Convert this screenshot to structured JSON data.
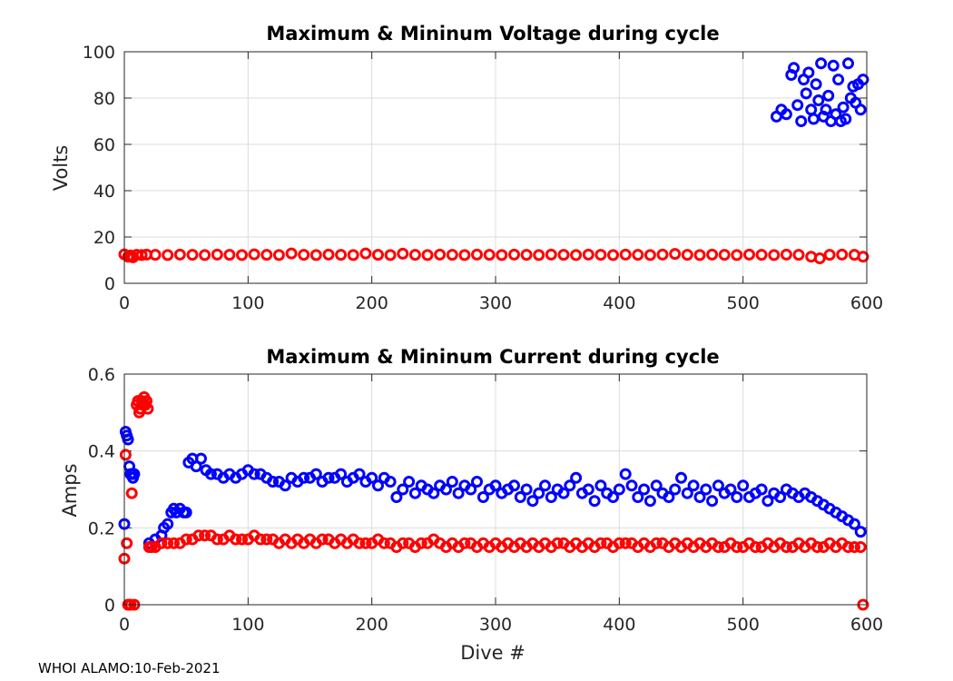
{
  "footer": "WHOI ALAMO:10-Feb-2021",
  "colors": {
    "max_series": "#0000ff",
    "min_series": "#ff0000",
    "axis": "#262626",
    "grid": "#dcdcdc"
  },
  "chart_data": [
    {
      "type": "scatter",
      "title": "Maximum & Mininum Voltage during cycle",
      "xlabel": "",
      "ylabel": "Volts",
      "xlim": [
        0,
        600
      ],
      "ylim": [
        0,
        100
      ],
      "xticks": [
        0,
        100,
        200,
        300,
        400,
        500,
        600
      ],
      "yticks": [
        0,
        20,
        40,
        60,
        80,
        100
      ],
      "grid": true,
      "marker": "open circle",
      "series": [
        {
          "name": "Maximum",
          "color": "#0000ff",
          "x": [
            527,
            531,
            535,
            539,
            541,
            544,
            547,
            549,
            551,
            553,
            555,
            557,
            559,
            561,
            563,
            565,
            567,
            569,
            571,
            573,
            575,
            577,
            579,
            581,
            583,
            585,
            587,
            589,
            591,
            593,
            595,
            597
          ],
          "y": [
            72,
            75,
            73,
            90,
            93,
            77,
            70,
            88,
            82,
            91,
            75,
            71,
            86,
            79,
            95,
            72,
            75,
            81,
            70,
            94,
            73,
            88,
            70,
            76,
            71,
            95,
            80,
            85,
            78,
            86,
            75,
            88
          ]
        },
        {
          "name": "Minimum",
          "color": "#ff0000",
          "x": [
            0,
            3,
            5,
            7,
            10,
            14,
            18,
            25,
            35,
            45,
            55,
            65,
            75,
            85,
            95,
            105,
            115,
            125,
            135,
            145,
            155,
            165,
            175,
            185,
            195,
            205,
            215,
            225,
            235,
            245,
            255,
            265,
            275,
            285,
            295,
            305,
            315,
            325,
            335,
            345,
            355,
            365,
            375,
            385,
            395,
            405,
            415,
            425,
            435,
            445,
            455,
            465,
            475,
            485,
            495,
            505,
            515,
            525,
            535,
            545,
            555,
            562,
            570,
            580,
            590,
            597
          ],
          "y": [
            12.5,
            11.5,
            12,
            11.2,
            12.3,
            12.2,
            12.4,
            12.3,
            12.2,
            12.4,
            12.3,
            12.2,
            12.4,
            12.3,
            12.2,
            12.5,
            12.3,
            12.2,
            12.9,
            12.3,
            12.2,
            12.4,
            12.3,
            12.2,
            12.9,
            12.3,
            12.2,
            12.8,
            12.3,
            12.2,
            12.4,
            12.3,
            12.2,
            12.4,
            12.3,
            12.2,
            12.4,
            12.3,
            12.2,
            12.4,
            12.3,
            12.2,
            12.4,
            12.3,
            12.2,
            12.4,
            12.3,
            12.2,
            12.4,
            12.7,
            12.3,
            12.2,
            12.4,
            12.3,
            12.2,
            12.4,
            12.3,
            12.2,
            12.4,
            12.3,
            11.5,
            10.8,
            12.3,
            12.4,
            12.3,
            11.5
          ]
        }
      ]
    },
    {
      "type": "scatter",
      "title": "Maximum & Mininum Current during cycle",
      "xlabel": "Dive #",
      "ylabel": "Amps",
      "xlim": [
        0,
        600
      ],
      "ylim": [
        0,
        0.6
      ],
      "xticks": [
        0,
        100,
        200,
        300,
        400,
        500,
        600
      ],
      "yticks": [
        0,
        0.2,
        0.4,
        0.6
      ],
      "grid": true,
      "marker": "open circle",
      "series": [
        {
          "name": "Maximum",
          "color": "#0000ff",
          "x": [
            0,
            1,
            2,
            3,
            4,
            5,
            6,
            7,
            8,
            20,
            25,
            30,
            32,
            35,
            38,
            40,
            42,
            45,
            48,
            50,
            52,
            55,
            58,
            62,
            66,
            70,
            75,
            80,
            85,
            90,
            95,
            100,
            105,
            110,
            115,
            120,
            125,
            130,
            135,
            140,
            145,
            150,
            155,
            160,
            165,
            170,
            175,
            180,
            185,
            190,
            195,
            200,
            205,
            210,
            215,
            220,
            225,
            230,
            235,
            240,
            245,
            250,
            255,
            260,
            265,
            270,
            275,
            280,
            285,
            290,
            295,
            300,
            305,
            310,
            315,
            320,
            325,
            330,
            335,
            340,
            345,
            350,
            355,
            360,
            365,
            370,
            375,
            380,
            385,
            390,
            395,
            400,
            405,
            410,
            415,
            420,
            425,
            430,
            435,
            440,
            445,
            450,
            455,
            460,
            465,
            470,
            475,
            480,
            485,
            490,
            495,
            500,
            505,
            510,
            515,
            520,
            525,
            530,
            535,
            540,
            545,
            550,
            555,
            560,
            565,
            570,
            575,
            580,
            585,
            590,
            595
          ],
          "y": [
            0.21,
            0.45,
            0.44,
            0.43,
            0.36,
            0.34,
            0.34,
            0.33,
            0.34,
            0.16,
            0.17,
            0.18,
            0.2,
            0.21,
            0.24,
            0.25,
            0.24,
            0.25,
            0.24,
            0.24,
            0.37,
            0.38,
            0.36,
            0.38,
            0.35,
            0.34,
            0.34,
            0.33,
            0.34,
            0.33,
            0.34,
            0.35,
            0.34,
            0.34,
            0.33,
            0.32,
            0.32,
            0.31,
            0.33,
            0.32,
            0.33,
            0.33,
            0.34,
            0.32,
            0.33,
            0.33,
            0.34,
            0.32,
            0.33,
            0.34,
            0.32,
            0.33,
            0.31,
            0.33,
            0.32,
            0.28,
            0.3,
            0.32,
            0.29,
            0.31,
            0.3,
            0.29,
            0.31,
            0.3,
            0.32,
            0.29,
            0.31,
            0.3,
            0.32,
            0.28,
            0.3,
            0.31,
            0.29,
            0.3,
            0.31,
            0.28,
            0.3,
            0.27,
            0.29,
            0.31,
            0.28,
            0.3,
            0.29,
            0.31,
            0.33,
            0.29,
            0.3,
            0.27,
            0.31,
            0.29,
            0.28,
            0.3,
            0.34,
            0.31,
            0.28,
            0.3,
            0.27,
            0.31,
            0.29,
            0.28,
            0.3,
            0.33,
            0.29,
            0.31,
            0.28,
            0.3,
            0.27,
            0.31,
            0.29,
            0.3,
            0.28,
            0.31,
            0.28,
            0.29,
            0.3,
            0.27,
            0.29,
            0.28,
            0.3,
            0.29,
            0.28,
            0.29,
            0.28,
            0.27,
            0.26,
            0.25,
            0.24,
            0.23,
            0.22,
            0.21,
            0.19
          ]
        },
        {
          "name": "Minimum",
          "color": "#ff0000",
          "x": [
            0,
            1,
            2,
            3,
            4,
            5,
            6,
            8,
            10,
            11,
            12,
            13,
            14,
            15,
            16,
            17,
            18,
            19,
            20,
            22,
            25,
            30,
            35,
            40,
            45,
            50,
            55,
            60,
            65,
            70,
            75,
            80,
            85,
            90,
            95,
            100,
            105,
            110,
            115,
            120,
            125,
            130,
            135,
            140,
            145,
            150,
            155,
            160,
            165,
            170,
            175,
            180,
            185,
            190,
            195,
            200,
            205,
            210,
            215,
            220,
            225,
            230,
            235,
            240,
            245,
            250,
            255,
            260,
            265,
            270,
            275,
            280,
            285,
            290,
            295,
            300,
            305,
            310,
            315,
            320,
            325,
            330,
            335,
            340,
            345,
            350,
            355,
            360,
            365,
            370,
            375,
            380,
            385,
            390,
            395,
            400,
            405,
            410,
            415,
            420,
            425,
            430,
            435,
            440,
            445,
            450,
            455,
            460,
            465,
            470,
            475,
            480,
            485,
            490,
            495,
            500,
            505,
            510,
            515,
            520,
            525,
            530,
            535,
            540,
            545,
            550,
            555,
            560,
            565,
            570,
            575,
            580,
            585,
            590,
            595,
            597
          ],
          "y": [
            0.12,
            0.39,
            0.16,
            0.0,
            0.0,
            0.0,
            0.29,
            0.0,
            0.52,
            0.53,
            0.5,
            0.51,
            0.53,
            0.52,
            0.54,
            0.52,
            0.53,
            0.51,
            0.15,
            0.15,
            0.15,
            0.16,
            0.16,
            0.16,
            0.16,
            0.17,
            0.17,
            0.18,
            0.18,
            0.18,
            0.17,
            0.17,
            0.18,
            0.17,
            0.17,
            0.17,
            0.18,
            0.17,
            0.17,
            0.17,
            0.16,
            0.17,
            0.16,
            0.17,
            0.16,
            0.17,
            0.16,
            0.17,
            0.17,
            0.16,
            0.17,
            0.16,
            0.17,
            0.16,
            0.16,
            0.16,
            0.17,
            0.16,
            0.16,
            0.15,
            0.16,
            0.16,
            0.15,
            0.16,
            0.16,
            0.17,
            0.16,
            0.15,
            0.16,
            0.15,
            0.16,
            0.16,
            0.15,
            0.16,
            0.15,
            0.16,
            0.15,
            0.16,
            0.15,
            0.16,
            0.15,
            0.16,
            0.15,
            0.16,
            0.15,
            0.16,
            0.16,
            0.15,
            0.16,
            0.15,
            0.16,
            0.15,
            0.16,
            0.16,
            0.15,
            0.16,
            0.16,
            0.16,
            0.15,
            0.16,
            0.15,
            0.16,
            0.16,
            0.15,
            0.16,
            0.15,
            0.16,
            0.15,
            0.16,
            0.15,
            0.16,
            0.15,
            0.15,
            0.16,
            0.15,
            0.15,
            0.16,
            0.15,
            0.15,
            0.16,
            0.15,
            0.16,
            0.15,
            0.15,
            0.16,
            0.15,
            0.16,
            0.15,
            0.15,
            0.16,
            0.15,
            0.16,
            0.15,
            0.15,
            0.15,
            0.0
          ]
        }
      ]
    }
  ]
}
